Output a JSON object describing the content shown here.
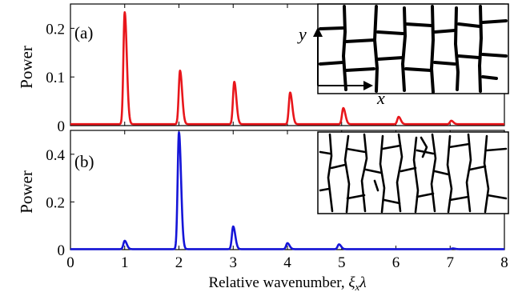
{
  "chart_data": [
    {
      "type": "line",
      "panel_label": "(a)",
      "ylabel": "Power",
      "xlabel": "",
      "xlim": [
        0,
        8
      ],
      "ylim": [
        0,
        0.25
      ],
      "x_ticks": [
        0,
        1,
        2,
        3,
        4,
        5,
        6,
        7,
        8
      ],
      "y_ticks": [
        0,
        0.1,
        0.2
      ],
      "y_tick_labels": [
        "0",
        "0.1",
        "0.2"
      ],
      "grid": false,
      "series": [
        {
          "color": "#e8161b",
          "baseline": 0.003,
          "peaks": [
            {
              "x": 1.0,
              "y": 0.23
            },
            {
              "x": 2.02,
              "y": 0.11
            },
            {
              "x": 3.02,
              "y": 0.087
            },
            {
              "x": 4.05,
              "y": 0.065
            },
            {
              "x": 5.03,
              "y": 0.033
            },
            {
              "x": 6.05,
              "y": 0.015
            },
            {
              "x": 7.02,
              "y": 0.007
            }
          ]
        }
      ],
      "inset": {
        "x_axis_label": "x",
        "y_axis_label": "y",
        "pattern": "regular crack grid"
      }
    },
    {
      "type": "line",
      "panel_label": "(b)",
      "ylabel": "Power",
      "xlabel": "Relative wavenumber, ξxλ",
      "xlim": [
        0,
        8
      ],
      "ylim": [
        0,
        0.5
      ],
      "x_ticks": [
        0,
        1,
        2,
        3,
        4,
        5,
        6,
        7,
        8
      ],
      "y_ticks": [
        0,
        0.2,
        0.4
      ],
      "y_tick_labels": [
        "0",
        "0.2",
        "0.4"
      ],
      "grid": false,
      "series": [
        {
          "color": "#1515d8",
          "baseline": 0.002,
          "peaks": [
            {
              "x": 1.0,
              "y": 0.035
            },
            {
              "x": 2.0,
              "y": 0.49
            },
            {
              "x": 3.0,
              "y": 0.095
            },
            {
              "x": 4.0,
              "y": 0.025
            },
            {
              "x": 4.95,
              "y": 0.02
            },
            {
              "x": 7.05,
              "y": 0.003
            }
          ]
        }
      ],
      "inset": {
        "pattern": "irregular crack network"
      }
    }
  ],
  "labels": {
    "panel_a": "(a)",
    "panel_b": "(b)",
    "ylabel": "Power",
    "xlabel_main": "Relative wavenumber, ",
    "xlabel_sym": "ξ",
    "xlabel_sub": "x",
    "xlabel_tail": "λ",
    "inset_y": "y",
    "inset_x": "x"
  }
}
